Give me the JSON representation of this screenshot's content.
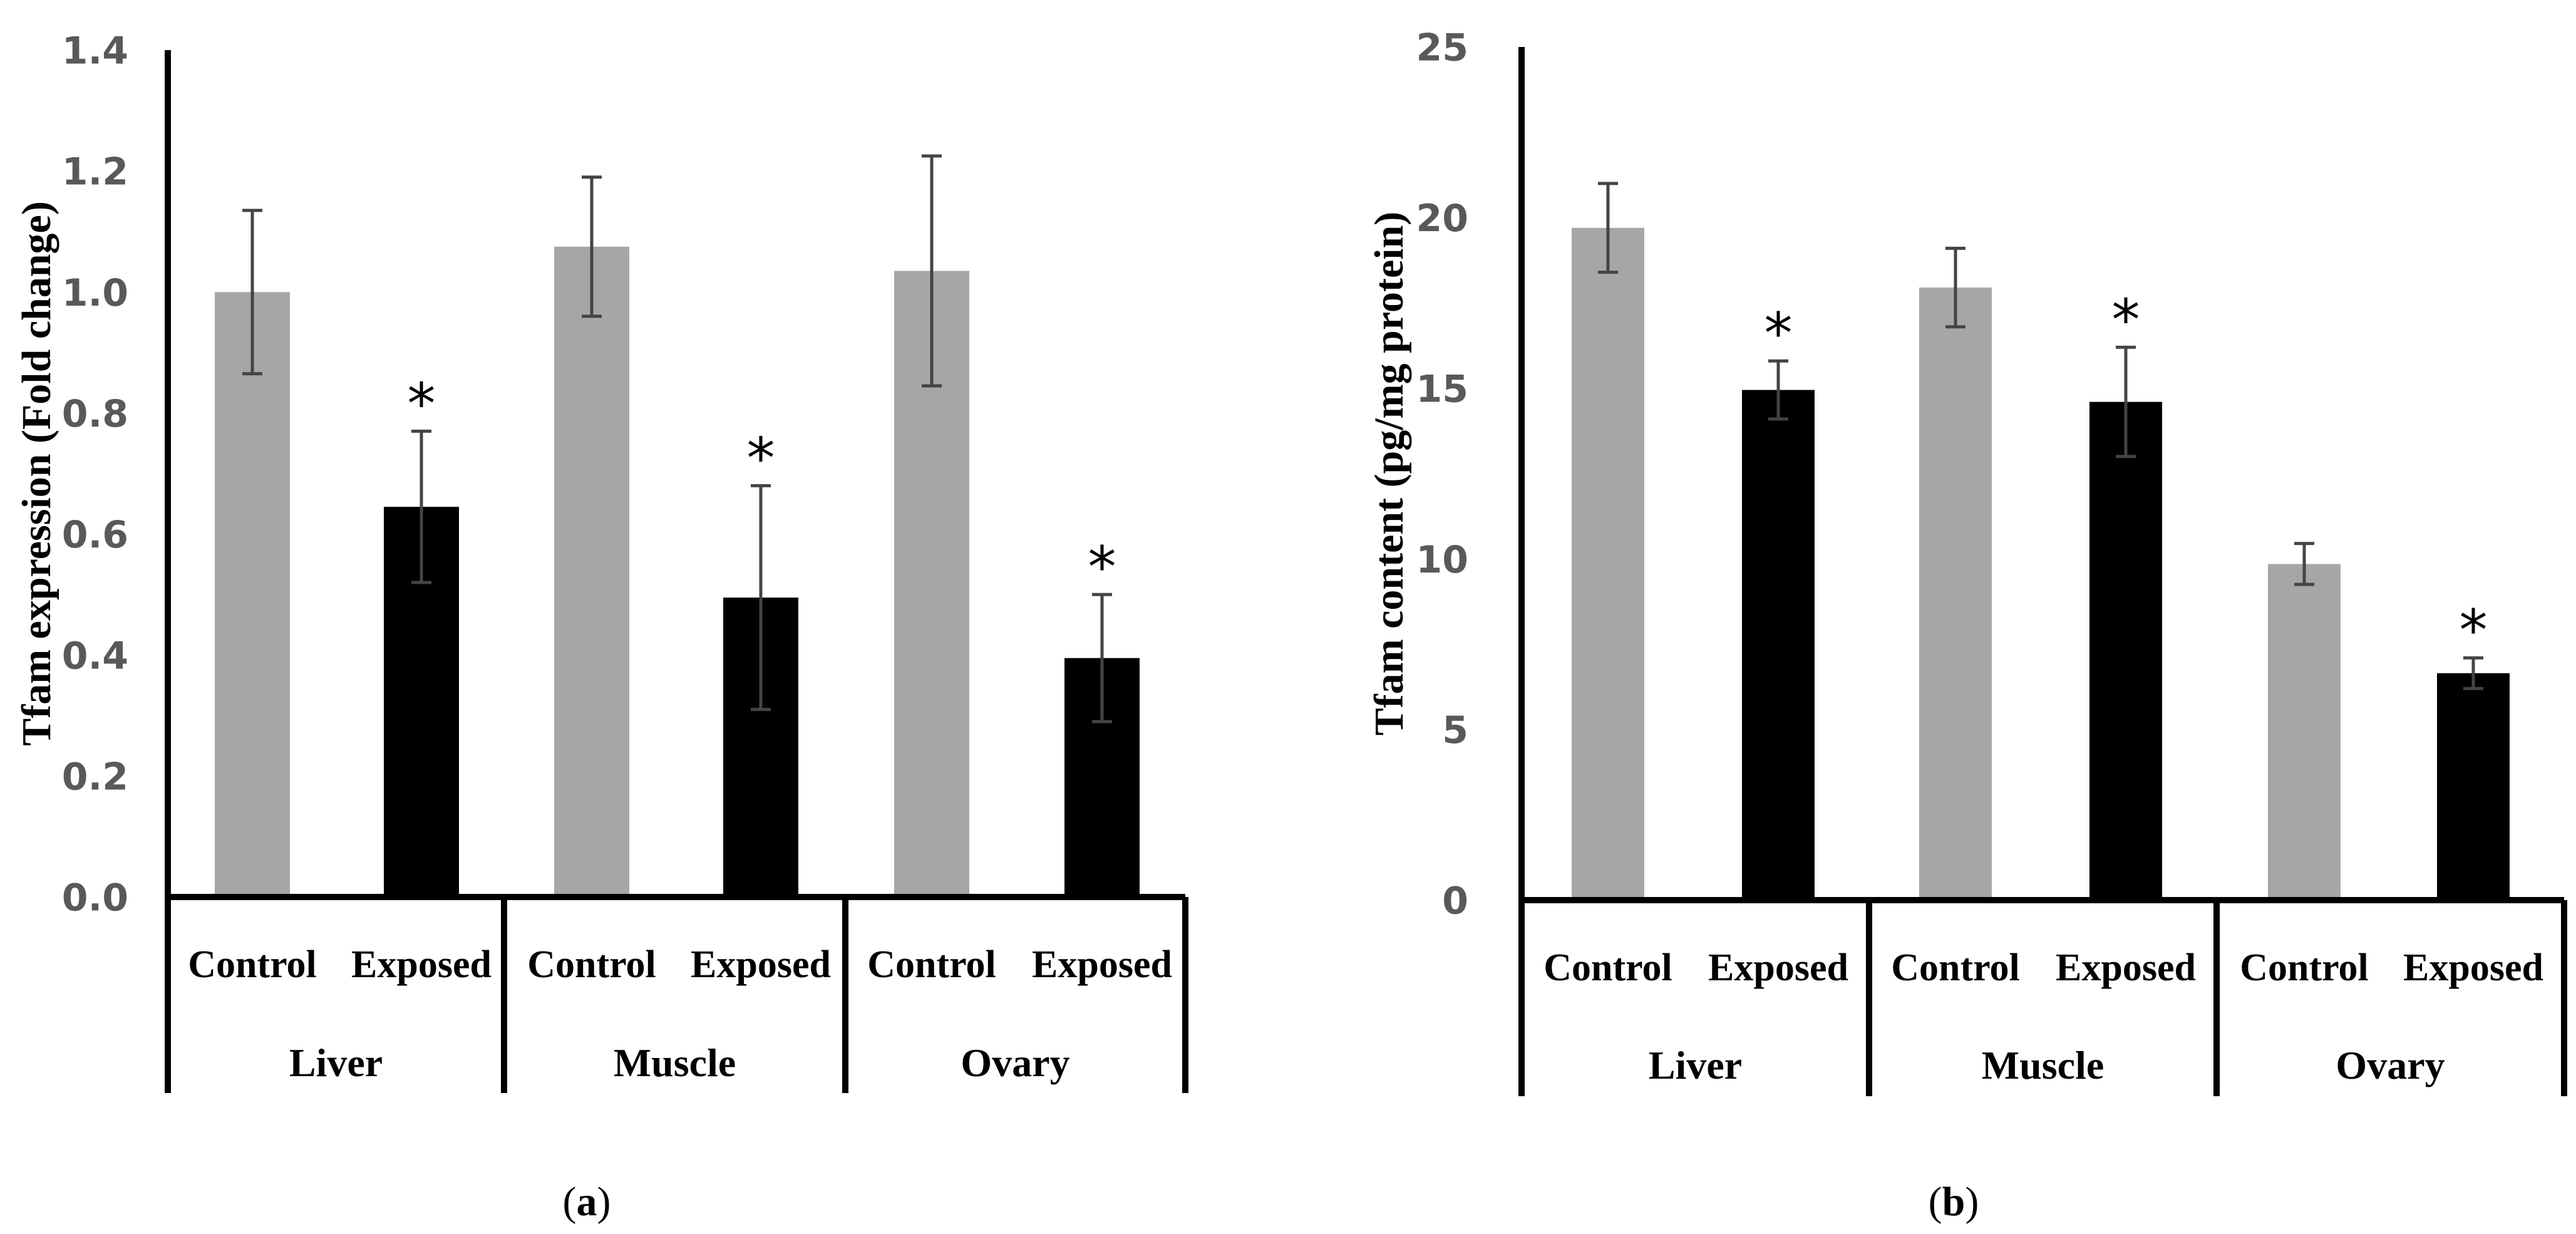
{
  "chart_data": [
    {
      "type": "bar",
      "panel_label": "a",
      "ylabel": "Tfam expression (Fold change)",
      "ylim": [
        0,
        1.4
      ],
      "yticks": [
        "0.0",
        "0.2",
        "0.4",
        "0.6",
        "0.8",
        "1.0",
        "1.2",
        "1.4"
      ],
      "groups": [
        "Liver",
        "Muscle",
        "Ovary"
      ],
      "conditions": [
        "Control",
        "Exposed"
      ],
      "colors": {
        "Control": "#a6a6a6",
        "Exposed": "#000000"
      },
      "bars": [
        {
          "group": "Liver",
          "condition": "Control",
          "value": 1.0,
          "error": 0.135,
          "significant": false
        },
        {
          "group": "Liver",
          "condition": "Exposed",
          "value": 0.645,
          "error": 0.125,
          "significant": true
        },
        {
          "group": "Muscle",
          "condition": "Control",
          "value": 1.075,
          "error": 0.115,
          "significant": false
        },
        {
          "group": "Muscle",
          "condition": "Exposed",
          "value": 0.495,
          "error": 0.185,
          "significant": true
        },
        {
          "group": "Ovary",
          "condition": "Control",
          "value": 1.035,
          "error": 0.19,
          "significant": false
        },
        {
          "group": "Ovary",
          "condition": "Exposed",
          "value": 0.395,
          "error": 0.105,
          "significant": true
        }
      ],
      "significance_marker": "*"
    },
    {
      "type": "bar",
      "panel_label": "b",
      "ylabel": "Tfam content (pg/mg protein)",
      "ylim": [
        0,
        25
      ],
      "yticks": [
        "0",
        "5",
        "10",
        "15",
        "20",
        "25"
      ],
      "groups": [
        "Liver",
        "Muscle",
        "Ovary"
      ],
      "conditions": [
        "Control",
        "Exposed"
      ],
      "colors": {
        "Control": "#a6a6a6",
        "Exposed": "#000000"
      },
      "bars": [
        {
          "group": "Liver",
          "condition": "Control",
          "value": 19.7,
          "error": 1.3,
          "significant": false
        },
        {
          "group": "Liver",
          "condition": "Exposed",
          "value": 14.95,
          "error": 0.85,
          "significant": true
        },
        {
          "group": "Muscle",
          "condition": "Control",
          "value": 17.95,
          "error": 1.15,
          "significant": false
        },
        {
          "group": "Muscle",
          "condition": "Exposed",
          "value": 14.6,
          "error": 1.6,
          "significant": true
        },
        {
          "group": "Ovary",
          "condition": "Control",
          "value": 9.85,
          "error": 0.6,
          "significant": false
        },
        {
          "group": "Ovary",
          "condition": "Exposed",
          "value": 6.65,
          "error": 0.45,
          "significant": true
        }
      ],
      "significance_marker": "*"
    }
  ]
}
